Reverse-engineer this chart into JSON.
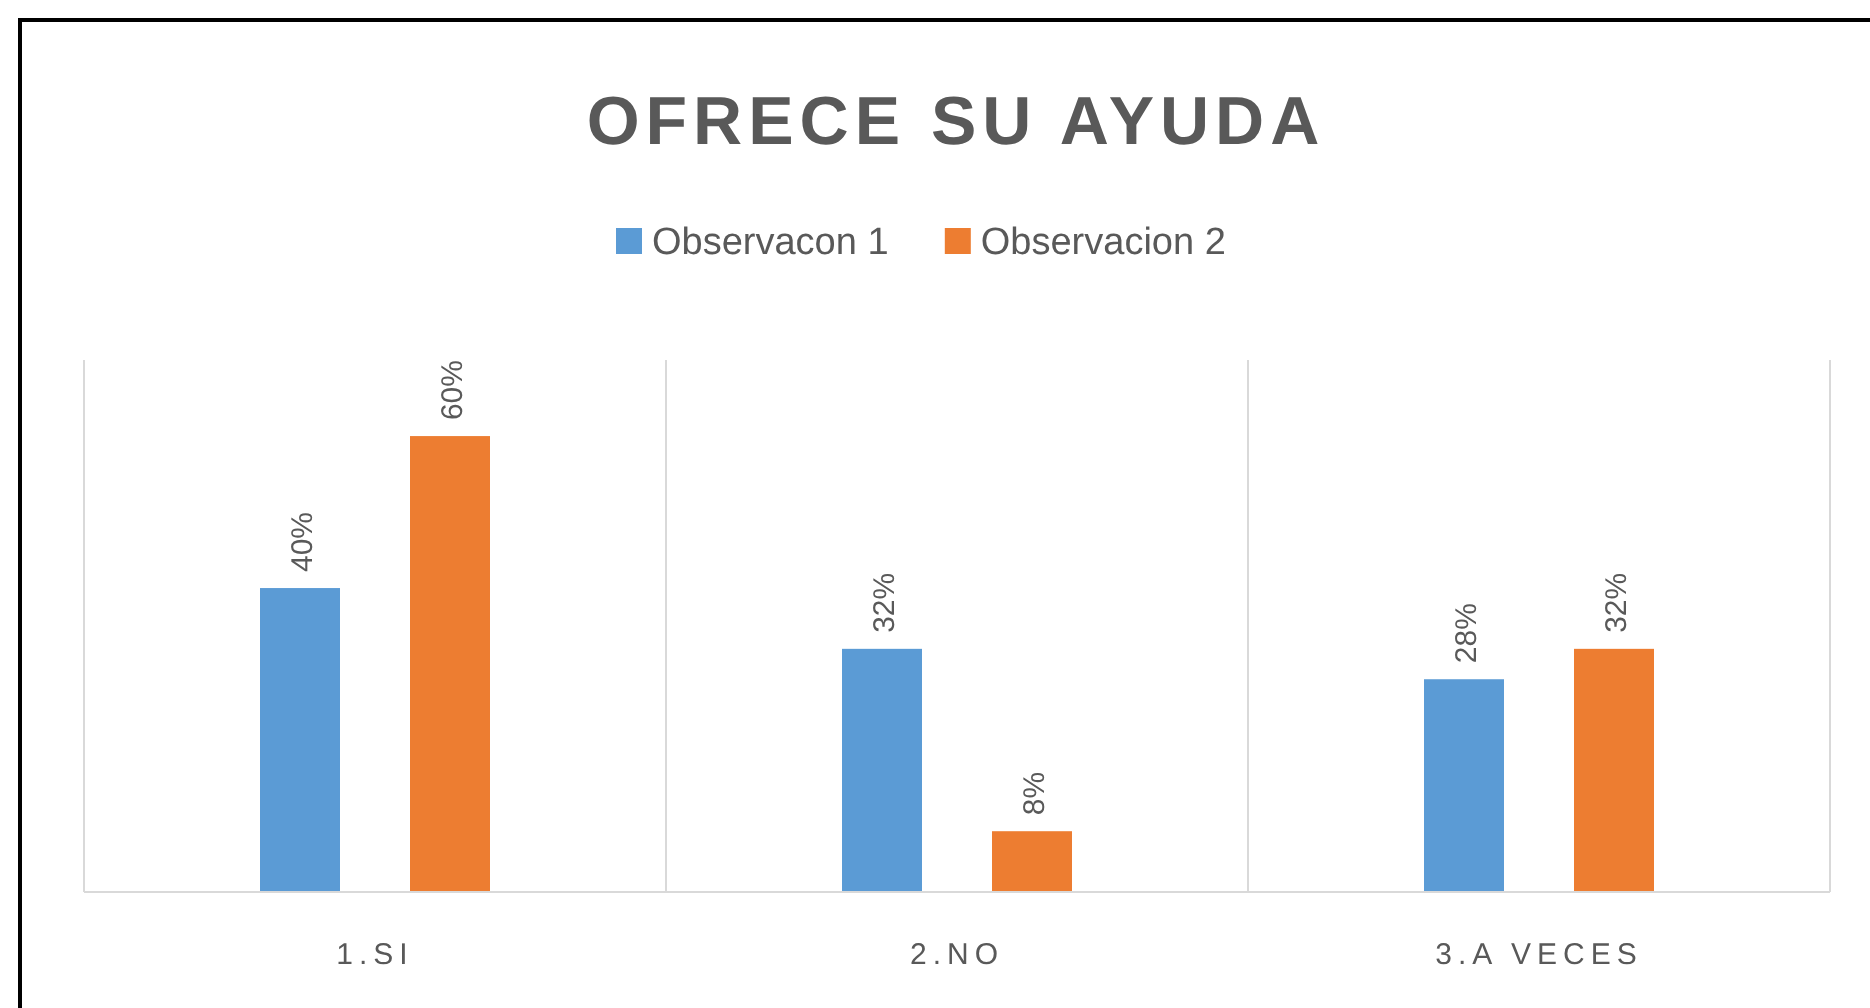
{
  "chart_data": {
    "type": "bar",
    "title": "OFRECE SU AYUDA",
    "categories": [
      "1.SI",
      "2.NO",
      "3.A VECES"
    ],
    "series": [
      {
        "name": "Observacon 1",
        "color": "#5b9bd5",
        "values": [
          40,
          32,
          28
        ],
        "value_labels": [
          "40%",
          "32%",
          "28%"
        ]
      },
      {
        "name": "Observacion 2",
        "color": "#ed7d31",
        "values": [
          60,
          8,
          32
        ],
        "value_labels": [
          "60%",
          "8%",
          "32%"
        ]
      }
    ],
    "grid": "x",
    "legend": "top"
  }
}
